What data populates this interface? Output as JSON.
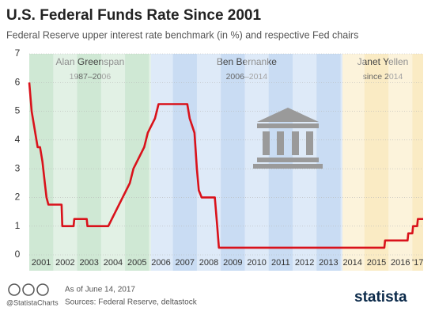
{
  "chart_data": {
    "type": "line",
    "title": "U.S. Federal Funds Rate Since 2001",
    "subtitle": "Federal Reserve upper interest rate benchmark (in %) and respective Fed chairs",
    "x": [
      2001.0,
      2001.1,
      2001.2,
      2001.3,
      2001.35,
      2001.45,
      2001.55,
      2001.65,
      2001.72,
      2001.8,
      2002.35,
      2002.38,
      2002.85,
      2002.88,
      2003.4,
      2003.43,
      2004.3,
      2004.45,
      2004.6,
      2004.75,
      2004.9,
      2005.05,
      2005.2,
      2005.35,
      2005.5,
      2005.65,
      2005.8,
      2005.95,
      2006.1,
      2006.25,
      2006.4,
      2007.6,
      2007.7,
      2007.8,
      2007.9,
      2008.0,
      2008.08,
      2008.2,
      2008.75,
      2008.85,
      2008.92,
      2015.83,
      2015.86,
      2016.8,
      2016.83,
      2017.0,
      2017.03,
      2017.2,
      2017.23,
      2017.45
    ],
    "series": [
      {
        "name": "Federal funds rate",
        "color": "#d9121b",
        "values": [
          6.0,
          5.0,
          4.5,
          4.0,
          3.75,
          3.75,
          3.25,
          2.5,
          2.0,
          1.75,
          1.75,
          1.0,
          1.0,
          1.25,
          1.25,
          1.0,
          1.0,
          1.25,
          1.5,
          1.75,
          2.0,
          2.25,
          2.5,
          3.0,
          3.25,
          3.5,
          3.75,
          4.25,
          4.5,
          4.75,
          5.25,
          5.25,
          4.75,
          4.5,
          4.25,
          3.0,
          2.25,
          2.0,
          2.0,
          1.0,
          0.25,
          0.25,
          0.5,
          0.5,
          0.75,
          0.75,
          1.0,
          1.0,
          1.25,
          1.25
        ]
      }
    ],
    "xlim": [
      2001,
      2017.45
    ],
    "xticks": [
      2001,
      2002,
      2003,
      2004,
      2005,
      2006,
      2007,
      2008,
      2009,
      2010,
      2011,
      2012,
      2013,
      2014,
      2015,
      2016,
      {
        "value": 2017,
        "label": "'17"
      }
    ],
    "ylim": [
      0,
      7
    ],
    "yticks": [
      0,
      1,
      2,
      3,
      4,
      5,
      6,
      7
    ],
    "grid": true,
    "eras": [
      {
        "name": "Alan Greenspan",
        "term": "1987–2006",
        "start": 2001,
        "end": 2006.08,
        "color": "#cfe8d4"
      },
      {
        "name": "Ben Bernanke",
        "term": "2006–2014",
        "start": 2006.08,
        "end": 2014.08,
        "color": "#c9dcf3"
      },
      {
        "name": "Janet Yellen",
        "term": "since 2014",
        "start": 2014.08,
        "end": 2017.45,
        "color": "#faebc4"
      }
    ]
  },
  "footer": {
    "date": "As of June 14, 2017",
    "sources": "Sources: Federal Reserve, deltastock",
    "handle": "@StatistaCharts",
    "brand": "statista"
  }
}
